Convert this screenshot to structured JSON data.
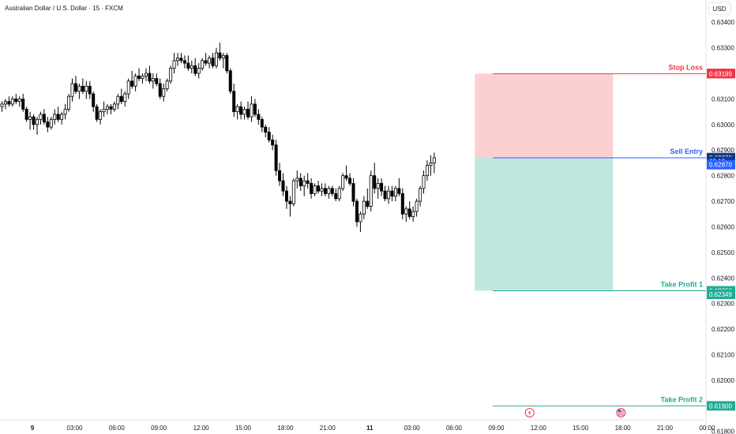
{
  "chart_title": "Australian Dollar / U.S. Dollar · 15 · FXCM",
  "currency_button": "USD",
  "chart_data": {
    "type": "candlestick",
    "title": "Australian Dollar / U.S. Dollar · 15 · FXCM",
    "ylim": [
      0.6183,
      0.6345
    ],
    "y_ticks": [
      "0.63400",
      "0.63300",
      "0.63200",
      "0.63100",
      "0.63000",
      "0.62900",
      "0.62800",
      "0.62700",
      "0.62600",
      "0.62500",
      "0.62400",
      "0.62300",
      "0.62200",
      "0.62100",
      "0.62000",
      "0.61900",
      "0.61800"
    ],
    "x_ticks": [
      {
        "label": "9",
        "bold": true,
        "bar": 0
      },
      {
        "label": "03:00",
        "bold": false,
        "bar": 12
      },
      {
        "label": "06:00",
        "bold": false,
        "bar": 24
      },
      {
        "label": "09:00",
        "bold": false,
        "bar": 36
      },
      {
        "label": "12:00",
        "bold": false,
        "bar": 48
      },
      {
        "label": "15:00",
        "bold": false,
        "bar": 60
      },
      {
        "label": "18:00",
        "bold": false,
        "bar": 72
      },
      {
        "label": "21:00",
        "bold": false,
        "bar": 84
      },
      {
        "label": "11",
        "bold": true,
        "bar": 96
      },
      {
        "label": "03:00",
        "bold": false,
        "bar": 108
      },
      {
        "label": "06:00",
        "bold": false,
        "bar": 120
      },
      {
        "label": "09:00",
        "bold": false,
        "bar": 132
      },
      {
        "label": "12:00",
        "bold": false,
        "bar": 144
      },
      {
        "label": "15:00",
        "bold": false,
        "bar": 156
      },
      {
        "label": "18:00",
        "bold": false,
        "bar": 168
      },
      {
        "label": "21:00",
        "bold": false,
        "bar": 180
      },
      {
        "label": "00:00",
        "bold": false,
        "bar": 192
      }
    ],
    "candles": [
      [
        0.6307,
        0.6309,
        0.6305,
        0.6308
      ],
      [
        0.6308,
        0.631,
        0.6306,
        0.6309
      ],
      [
        0.6309,
        0.6311,
        0.6307,
        0.6308
      ],
      [
        0.6308,
        0.6311,
        0.6307,
        0.631
      ],
      [
        0.631,
        0.6312,
        0.6308,
        0.6309
      ],
      [
        0.6309,
        0.6311,
        0.6307,
        0.631
      ],
      [
        0.631,
        0.6312,
        0.6305,
        0.6306
      ],
      [
        0.6306,
        0.6307,
        0.6301,
        0.6302
      ],
      [
        0.6302,
        0.6305,
        0.6298,
        0.6303
      ],
      [
        0.6303,
        0.6304,
        0.6298,
        0.63
      ],
      [
        0.63,
        0.6303,
        0.6296,
        0.6302
      ],
      [
        0.6302,
        0.6305,
        0.63,
        0.6304
      ],
      [
        0.6304,
        0.6306,
        0.63,
        0.6301
      ],
      [
        0.6301,
        0.6303,
        0.6297,
        0.6299
      ],
      [
        0.6299,
        0.6303,
        0.6298,
        0.6302
      ],
      [
        0.6302,
        0.6306,
        0.63,
        0.6304
      ],
      [
        0.6304,
        0.6307,
        0.6301,
        0.6302
      ],
      [
        0.6302,
        0.6305,
        0.63,
        0.6304
      ],
      [
        0.6304,
        0.6308,
        0.6302,
        0.6306
      ],
      [
        0.6306,
        0.6312,
        0.6305,
        0.6311
      ],
      [
        0.6311,
        0.6318,
        0.6309,
        0.6316
      ],
      [
        0.6316,
        0.6319,
        0.6312,
        0.6313
      ],
      [
        0.6313,
        0.6316,
        0.631,
        0.6315
      ],
      [
        0.6315,
        0.6318,
        0.6312,
        0.6313
      ],
      [
        0.6313,
        0.6317,
        0.631,
        0.6315
      ],
      [
        0.6315,
        0.6317,
        0.631,
        0.6312
      ],
      [
        0.6312,
        0.6313,
        0.6305,
        0.6307
      ],
      [
        0.6307,
        0.6308,
        0.6301,
        0.6302
      ],
      [
        0.6302,
        0.6306,
        0.63,
        0.6305
      ],
      [
        0.6305,
        0.6309,
        0.6303,
        0.6306
      ],
      [
        0.6306,
        0.6308,
        0.6304,
        0.6307
      ],
      [
        0.6307,
        0.6308,
        0.6304,
        0.6306
      ],
      [
        0.6306,
        0.6309,
        0.6305,
        0.6308
      ],
      [
        0.6308,
        0.6312,
        0.6306,
        0.6311
      ],
      [
        0.6311,
        0.6314,
        0.6308,
        0.6309
      ],
      [
        0.6309,
        0.6313,
        0.6307,
        0.6312
      ],
      [
        0.6312,
        0.6318,
        0.631,
        0.6317
      ],
      [
        0.6317,
        0.6321,
        0.6314,
        0.6315
      ],
      [
        0.6315,
        0.632,
        0.6313,
        0.6319
      ],
      [
        0.6319,
        0.6322,
        0.6317,
        0.6318
      ],
      [
        0.6318,
        0.632,
        0.6316,
        0.6319
      ],
      [
        0.6319,
        0.6322,
        0.6317,
        0.632
      ],
      [
        0.632,
        0.6323,
        0.6316,
        0.6317
      ],
      [
        0.6317,
        0.632,
        0.6314,
        0.6318
      ],
      [
        0.6318,
        0.632,
        0.6315,
        0.6316
      ],
      [
        0.6316,
        0.6318,
        0.631,
        0.6311
      ],
      [
        0.6311,
        0.6316,
        0.6309,
        0.6314
      ],
      [
        0.6314,
        0.6318,
        0.6313,
        0.6317
      ],
      [
        0.6317,
        0.6323,
        0.6316,
        0.6322
      ],
      [
        0.6322,
        0.6328,
        0.632,
        0.6325
      ],
      [
        0.6325,
        0.6328,
        0.6323,
        0.6326
      ],
      [
        0.6326,
        0.6328,
        0.6324,
        0.6325
      ],
      [
        0.6325,
        0.6327,
        0.6322,
        0.6324
      ],
      [
        0.6324,
        0.6327,
        0.6321,
        0.6322
      ],
      [
        0.6322,
        0.6325,
        0.632,
        0.6323
      ],
      [
        0.6323,
        0.6326,
        0.6319,
        0.632
      ],
      [
        0.632,
        0.6324,
        0.6318,
        0.6322
      ],
      [
        0.6322,
        0.6326,
        0.6321,
        0.6325
      ],
      [
        0.6325,
        0.6328,
        0.6323,
        0.6324
      ],
      [
        0.6324,
        0.6327,
        0.6322,
        0.6326
      ],
      [
        0.6326,
        0.6328,
        0.6322,
        0.6323
      ],
      [
        0.6323,
        0.633,
        0.6322,
        0.6328
      ],
      [
        0.6328,
        0.6332,
        0.6325,
        0.6326
      ],
      [
        0.6326,
        0.6328,
        0.6322,
        0.6327
      ],
      [
        0.6327,
        0.6328,
        0.632,
        0.6321
      ],
      [
        0.6321,
        0.6322,
        0.6312,
        0.6313
      ],
      [
        0.6313,
        0.6316,
        0.6303,
        0.6305
      ],
      [
        0.6305,
        0.6308,
        0.6302,
        0.6307
      ],
      [
        0.6307,
        0.6309,
        0.6302,
        0.6304
      ],
      [
        0.6304,
        0.6307,
        0.6302,
        0.6306
      ],
      [
        0.6306,
        0.6309,
        0.6302,
        0.6303
      ],
      [
        0.6303,
        0.6311,
        0.6301,
        0.6308
      ],
      [
        0.6308,
        0.631,
        0.6303,
        0.6304
      ],
      [
        0.6304,
        0.6306,
        0.63,
        0.6302
      ],
      [
        0.6302,
        0.6303,
        0.6297,
        0.6299
      ],
      [
        0.6299,
        0.63,
        0.6295,
        0.6297
      ],
      [
        0.6297,
        0.6299,
        0.6293,
        0.6294
      ],
      [
        0.6294,
        0.6296,
        0.629,
        0.6292
      ],
      [
        0.6292,
        0.6294,
        0.628,
        0.6282
      ],
      [
        0.6282,
        0.6285,
        0.6276,
        0.6278
      ],
      [
        0.6278,
        0.6281,
        0.6272,
        0.6274
      ],
      [
        0.6274,
        0.6276,
        0.6267,
        0.627
      ],
      [
        0.627,
        0.6272,
        0.6264,
        0.6269
      ],
      [
        0.6269,
        0.6279,
        0.6268,
        0.6278
      ],
      [
        0.6278,
        0.6282,
        0.6275,
        0.6279
      ],
      [
        0.6279,
        0.6281,
        0.6274,
        0.6276
      ],
      [
        0.6276,
        0.628,
        0.6272,
        0.6278
      ],
      [
        0.6278,
        0.6281,
        0.6275,
        0.6277
      ],
      [
        0.6277,
        0.6279,
        0.6271,
        0.6273
      ],
      [
        0.6273,
        0.6277,
        0.6272,
        0.6276
      ],
      [
        0.6276,
        0.6278,
        0.6273,
        0.6274
      ],
      [
        0.6274,
        0.6277,
        0.6272,
        0.6275
      ],
      [
        0.6275,
        0.6277,
        0.6272,
        0.6273
      ],
      [
        0.6273,
        0.6276,
        0.6271,
        0.6275
      ],
      [
        0.6275,
        0.6276,
        0.6272,
        0.6273
      ],
      [
        0.6273,
        0.6275,
        0.627,
        0.6271
      ],
      [
        0.6271,
        0.6276,
        0.627,
        0.6275
      ],
      [
        0.6275,
        0.6281,
        0.6274,
        0.628
      ],
      [
        0.628,
        0.6284,
        0.6278,
        0.6279
      ],
      [
        0.6279,
        0.6281,
        0.6276,
        0.6277
      ],
      [
        0.6277,
        0.6279,
        0.6268,
        0.627
      ],
      [
        0.627,
        0.6271,
        0.626,
        0.6262
      ],
      [
        0.6262,
        0.6266,
        0.6258,
        0.6265
      ],
      [
        0.6265,
        0.6272,
        0.6263,
        0.627
      ],
      [
        0.627,
        0.6275,
        0.6267,
        0.6268
      ],
      [
        0.6268,
        0.6282,
        0.6266,
        0.628
      ],
      [
        0.628,
        0.6285,
        0.6273,
        0.6275
      ],
      [
        0.6275,
        0.6279,
        0.6271,
        0.6277
      ],
      [
        0.6277,
        0.6279,
        0.6272,
        0.6274
      ],
      [
        0.6274,
        0.6276,
        0.627,
        0.6271
      ],
      [
        0.6271,
        0.6276,
        0.6269,
        0.6274
      ],
      [
        0.6274,
        0.6276,
        0.627,
        0.6272
      ],
      [
        0.6272,
        0.6276,
        0.627,
        0.6275
      ],
      [
        0.6275,
        0.6279,
        0.6272,
        0.6273
      ],
      [
        0.6273,
        0.6275,
        0.6263,
        0.6265
      ],
      [
        0.6265,
        0.6268,
        0.6262,
        0.6267
      ],
      [
        0.6267,
        0.627,
        0.6263,
        0.6264
      ],
      [
        0.6264,
        0.6268,
        0.6262,
        0.6266
      ],
      [
        0.6266,
        0.6271,
        0.6264,
        0.627
      ],
      [
        0.627,
        0.6276,
        0.6268,
        0.6275
      ],
      [
        0.6275,
        0.6282,
        0.6273,
        0.628
      ],
      [
        0.628,
        0.6286,
        0.6278,
        0.6284
      ],
      [
        0.6284,
        0.6288,
        0.628,
        0.6285
      ],
      [
        0.6285,
        0.6289,
        0.6281,
        0.6287
      ]
    ],
    "levels": [
      {
        "name": "Stop Loss",
        "price": 0.63199,
        "color": "#f23645",
        "badges": [
          {
            "text": "0.63200",
            "price": 0.632,
            "color": "#f23645"
          },
          {
            "text": "0.63199",
            "price": 0.63199,
            "color": "#f23645"
          }
        ]
      },
      {
        "name": "Sell Entry",
        "price": 0.6287,
        "color": "#2962ff",
        "badges": [
          {
            "text": "0.62871",
            "price": 0.62871,
            "color": "#787b86"
          },
          {
            "text": "0.62870",
            "price": 0.6287,
            "color": "#0f3a8c"
          },
          {
            "text": "03:13",
            "price": 0.62856,
            "color": "#0f3a8c"
          },
          {
            "text": "0.62870",
            "price": 0.62843,
            "color": "#2962ff"
          }
        ]
      },
      {
        "name": "Take Profit 1",
        "price": 0.6235,
        "color": "#22ab94",
        "badges": [
          {
            "text": "0.62350",
            "price": 0.6235,
            "color": "#22ab94"
          },
          {
            "text": "0.62349",
            "price": 0.62336,
            "color": "#22ab94"
          }
        ]
      },
      {
        "name": "Take Profit 2",
        "price": 0.619,
        "color": "#22ab94",
        "badges": [
          {
            "text": "0.61900",
            "price": 0.619,
            "color": "#22ab94"
          }
        ]
      }
    ],
    "position": {
      "entry": 0.6287,
      "stop": 0.63199,
      "target": 0.6235,
      "start_bar": 125,
      "end_bar": 154
    },
    "event_markers": [
      {
        "icon": "lightning-icon",
        "bar": 126
      },
      {
        "icon": "us-flag-icon",
        "bar": 152
      }
    ],
    "colors": {
      "up": "#ffffff",
      "down": "#000000",
      "wick": "#000000",
      "risk": "#fcd0d0",
      "reward": "#bfe7e0"
    }
  }
}
